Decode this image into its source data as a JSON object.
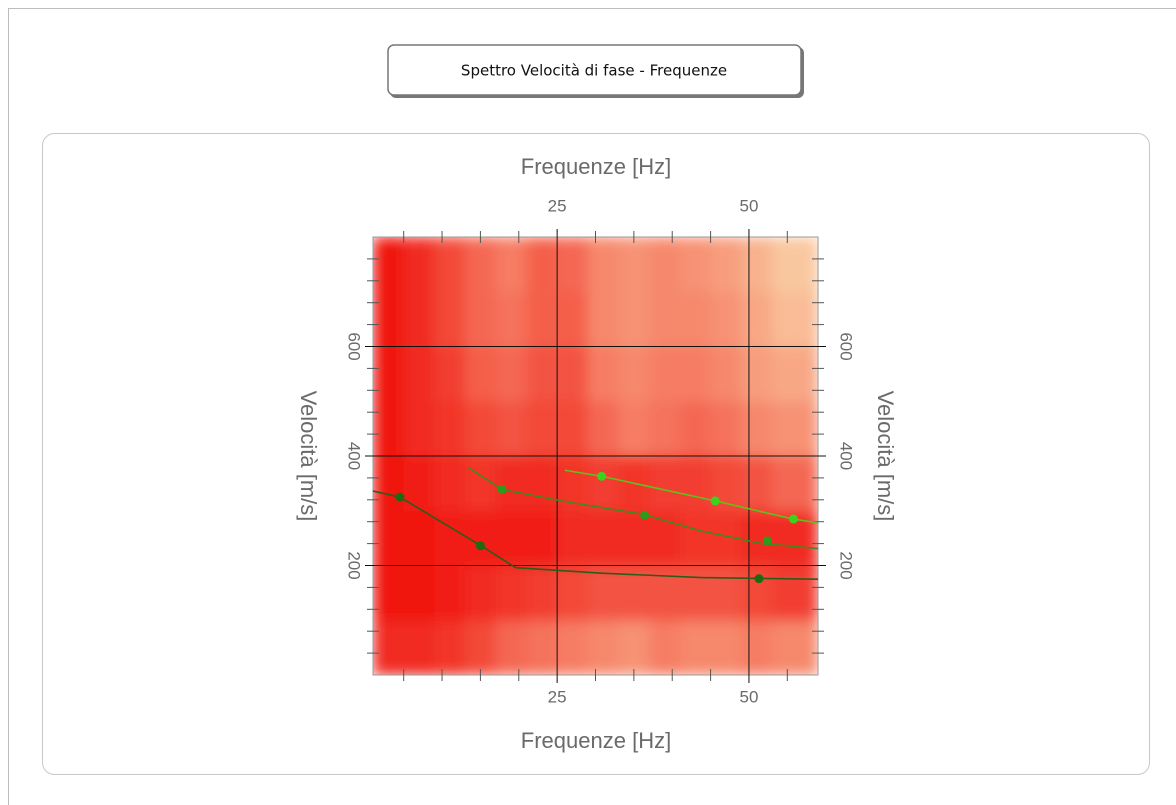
{
  "chart_data": {
    "type": "heatmap",
    "title": "Spettro Velocità di fase - Frequenze",
    "xlabel": "Frequenze [Hz]",
    "ylabel": "Velocità [m/s]",
    "xlim": [
      1,
      59
    ],
    "ylim": [
      0,
      800
    ],
    "xticks": [
      25,
      50
    ],
    "yticks": [
      200,
      400,
      600
    ],
    "x_minor_ticks": [
      5,
      10,
      15,
      20,
      30,
      35,
      40,
      45,
      55
    ],
    "y_minor_ticks": [
      40,
      80,
      120,
      160,
      240,
      280,
      320,
      360,
      440,
      480,
      520,
      560,
      640,
      680,
      720,
      760
    ],
    "grid": true,
    "colormap": [
      "#fbe6b8",
      "#f0140f"
    ],
    "x_edges": [
      1,
      5,
      9,
      13,
      17,
      21,
      25,
      29,
      33,
      37,
      41,
      45,
      49,
      53,
      59
    ],
    "y_edges": [
      0,
      100,
      200,
      300,
      400,
      500,
      600,
      700,
      800
    ],
    "z": [
      [
        0.9,
        0.9,
        0.85,
        0.75,
        0.6,
        0.55,
        0.5,
        0.45,
        0.4,
        0.5,
        0.45,
        0.45,
        0.5,
        0.45
      ],
      [
        1,
        1,
        0.95,
        0.9,
        0.85,
        0.8,
        0.75,
        0.7,
        0.7,
        0.7,
        0.7,
        0.7,
        0.75,
        0.8
      ],
      [
        1,
        1,
        0.95,
        0.95,
        0.95,
        0.95,
        0.9,
        0.9,
        0.9,
        0.9,
        0.85,
        0.85,
        0.9,
        0.9
      ],
      [
        1,
        0.95,
        0.9,
        0.85,
        0.9,
        0.9,
        0.85,
        0.8,
        0.85,
        0.8,
        0.8,
        0.75,
        0.7,
        0.6
      ],
      [
        1,
        0.9,
        0.85,
        0.75,
        0.7,
        0.75,
        0.75,
        0.6,
        0.5,
        0.55,
        0.6,
        0.55,
        0.45,
        0.4
      ],
      [
        1,
        0.9,
        0.8,
        0.65,
        0.6,
        0.7,
        0.7,
        0.5,
        0.45,
        0.5,
        0.5,
        0.45,
        0.35,
        0.3
      ],
      [
        1,
        0.9,
        0.75,
        0.6,
        0.55,
        0.65,
        0.65,
        0.45,
        0.4,
        0.45,
        0.45,
        0.4,
        0.3,
        0.2
      ],
      [
        1,
        0.9,
        0.75,
        0.6,
        0.5,
        0.65,
        0.6,
        0.45,
        0.4,
        0.45,
        0.4,
        0.35,
        0.25,
        0.15
      ]
    ],
    "curves": [
      {
        "color": "#2e5a1a",
        "x": [
          1,
          4.5,
          15.1,
          19.6,
          30.8,
          43.8,
          59
        ],
        "y": [
          336,
          325,
          236,
          196,
          186,
          178,
          175
        ]
      },
      {
        "color": "#3f8a1c",
        "x": [
          13.4,
          17.8,
          25.5,
          36,
          43.8,
          51.7,
          59
        ],
        "y": [
          379,
          339,
          318,
          294,
          263,
          240,
          231
        ]
      },
      {
        "color": "#5cc21e",
        "x": [
          26,
          30.8,
          45.6,
          55.7,
          59
        ],
        "y": [
          374,
          363,
          318,
          285,
          278
        ]
      }
    ],
    "points": [
      {
        "color": "#1e6a12",
        "x": [
          4.5,
          15,
          51.3
        ],
        "y": [
          325,
          236,
          176
        ]
      },
      {
        "color": "#2f9a1a",
        "x": [
          17.8,
          36.4,
          52.4
        ],
        "y": [
          339,
          292,
          245
        ]
      },
      {
        "color": "#3cd21e",
        "x": [
          30.8,
          45.6,
          55.8
        ],
        "y": [
          363,
          318,
          285
        ]
      }
    ]
  }
}
